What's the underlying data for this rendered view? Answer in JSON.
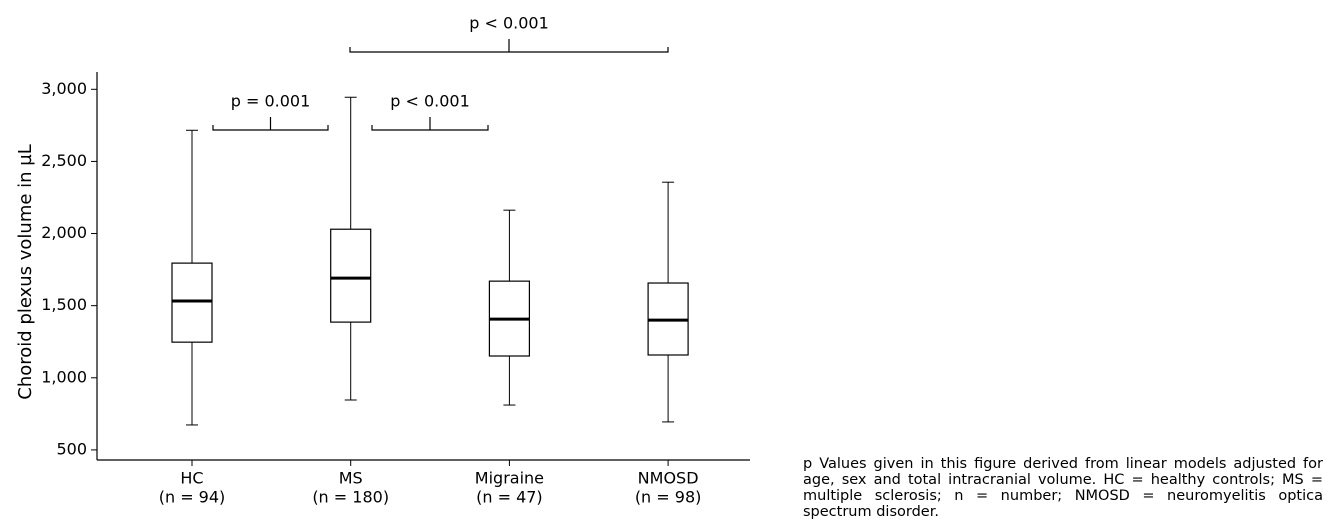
{
  "chart_data": {
    "type": "box",
    "y_label": "Choroid plexus volume in µL",
    "categories": [
      "HC",
      "MS",
      "Migraine",
      "NMOSD"
    ],
    "category_counts": [
      "(n = 94)",
      "(n = 180)",
      "(n = 47)",
      "(n = 98)"
    ],
    "boxes": [
      {
        "min": 673,
        "q1": 1247,
        "median": 1532,
        "q3": 1795,
        "max": 2716
      },
      {
        "min": 846,
        "q1": 1386,
        "median": 1691,
        "q3": 2030,
        "max": 2945
      },
      {
        "min": 811,
        "q1": 1151,
        "median": 1407,
        "q3": 1670,
        "max": 2162
      },
      {
        "min": 694,
        "q1": 1158,
        "median": 1400,
        "q3": 1657,
        "max": 2356
      }
    ],
    "ylim": [
      430,
      3120
    ],
    "yticks": [
      {
        "value": 500,
        "label": "500"
      },
      {
        "value": 1000,
        "label": "1,000"
      },
      {
        "value": 1500,
        "label": "1,500"
      },
      {
        "value": 2000,
        "label": "2,000"
      },
      {
        "value": 2500,
        "label": "2,500"
      },
      {
        "value": 3000,
        "label": "3,000"
      }
    ],
    "annotations": [
      "p = 0.001",
      "p < 0.001",
      "p < 0.001"
    ],
    "caption": "p Values given in this figure derived from linear models adjusted for age, sex and total intracranial volume. HC = healthy controls; MS = multiple sclerosis; n = number; NMOSD = neuromyelitis optica spectrum disorder."
  }
}
